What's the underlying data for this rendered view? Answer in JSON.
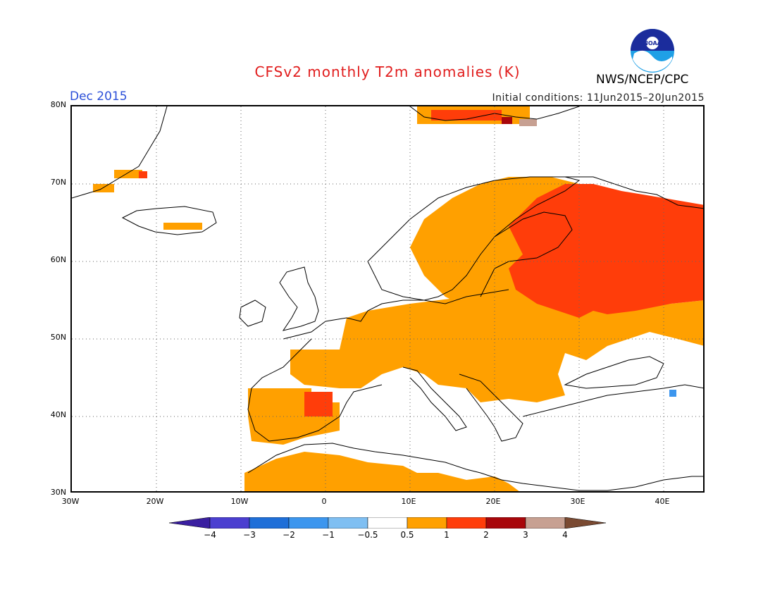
{
  "header": {
    "title": "CFSv2 monthly T2m anomalies (K)",
    "month": "Dec 2015",
    "initial_conditions": "Initial conditions: 11Jun2015–20Jun2015",
    "agency": "NWS/NCEP/CPC",
    "logo_text": "NOAA",
    "title_color": "#e11d1d",
    "month_color": "#2b4fd8"
  },
  "axes": {
    "lat_labels": [
      "80N",
      "70N",
      "60N",
      "50N",
      "40N",
      "30N"
    ],
    "lon_labels": [
      "30W",
      "20W",
      "10W",
      "0",
      "10E",
      "20E",
      "30E",
      "40E"
    ]
  },
  "colorbar": {
    "labels": [
      "−4",
      "−3",
      "−2",
      "−1",
      "−0.5",
      "0.5",
      "1",
      "2",
      "3",
      "4"
    ],
    "colors": [
      "#3a1fa0",
      "#4b3fd0",
      "#1f6fd8",
      "#3c96ee",
      "#7fbff2",
      "#ffffff",
      "#ffa000",
      "#ff3d0a",
      "#a8060a",
      "#c7a092",
      "#7a4a32"
    ]
  },
  "legend_meaning": {
    "orange": "0.5 to 1",
    "red": "1 to 2",
    "dark_red": "2 to 3",
    "tan": "3 to 4",
    "light_blue": "-1 to -0.5"
  }
}
